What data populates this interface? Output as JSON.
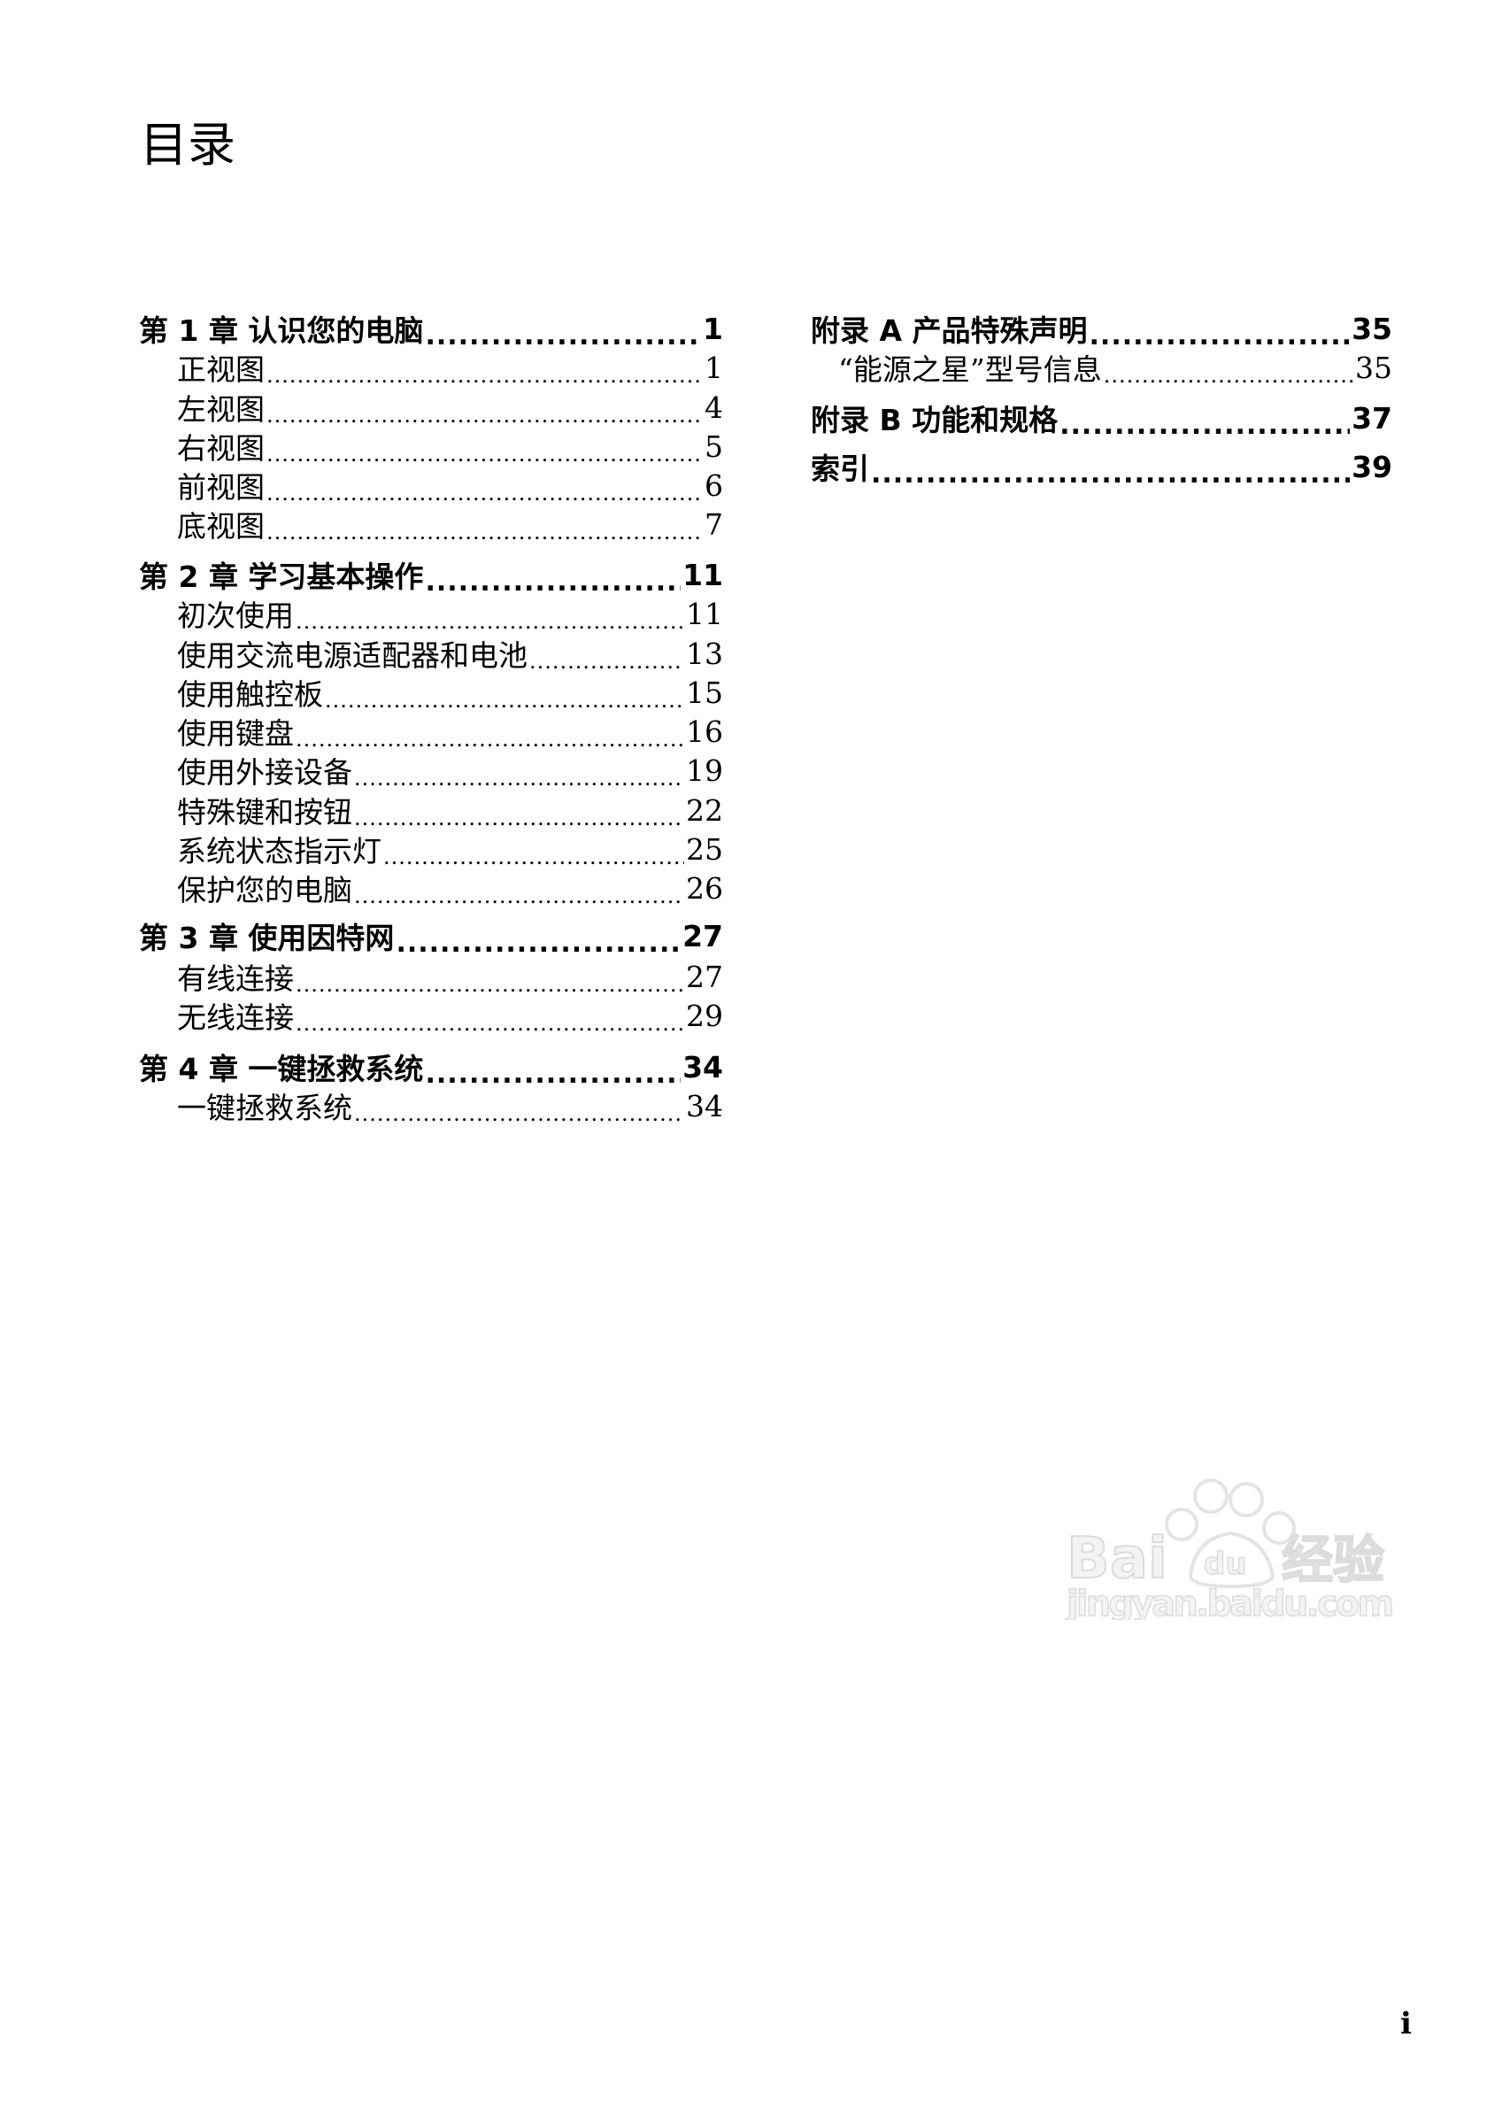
{
  "title": "目录",
  "left_column": [
    {
      "label": "第 1 章 认识您的电脑",
      "page": "1",
      "level": 1
    },
    {
      "label": "正视图",
      "page": "1",
      "level": 2
    },
    {
      "label": "左视图",
      "page": "4",
      "level": 2
    },
    {
      "label": "右视图",
      "page": "5",
      "level": 2
    },
    {
      "label": "前视图",
      "page": "6",
      "level": 2
    },
    {
      "label": "底视图",
      "page": "7",
      "level": 2
    },
    {
      "label": "第 2 章 学习基本操作",
      "page": "11",
      "level": 1
    },
    {
      "label": "初次使用",
      "page": "11",
      "level": 2
    },
    {
      "label": "使用交流电源适配器和电池",
      "page": "13",
      "level": 2
    },
    {
      "label": "使用触控板",
      "page": "15",
      "level": 2
    },
    {
      "label": "使用键盘",
      "page": "16",
      "level": 2
    },
    {
      "label": "使用外接设备",
      "page": "19",
      "level": 2
    },
    {
      "label": "特殊键和按钮",
      "page": "22",
      "level": 2
    },
    {
      "label": "系统状态指示灯",
      "page": "25",
      "level": 2
    },
    {
      "label": "保护您的电脑",
      "page": "26",
      "level": 2
    },
    {
      "label": "第 3 章 使用因特网",
      "page": "27",
      "level": 1
    },
    {
      "label": "有线连接",
      "page": "27",
      "level": 2
    },
    {
      "label": "无线连接",
      "page": "29",
      "level": 2
    },
    {
      "label": "第 4 章 一键拯救系统",
      "page": "34",
      "level": 1
    },
    {
      "label": "一键拯救系统",
      "page": "34",
      "level": 2
    }
  ],
  "right_column": [
    {
      "label": "附录 A 产品特殊声明",
      "page": "35",
      "level": 1
    },
    {
      "label": "“能源之星”型号信息",
      "page": "35",
      "level": 2
    },
    {
      "label": "附录 B 功能和规格",
      "page": "37",
      "level": 1
    },
    {
      "label": "索引",
      "page": "39",
      "level": 1
    }
  ],
  "page_number": "i",
  "watermark": {
    "text": "Baidu经验",
    "url_text": "jingyan.baidu.com",
    "color": "#e6e6e6"
  }
}
